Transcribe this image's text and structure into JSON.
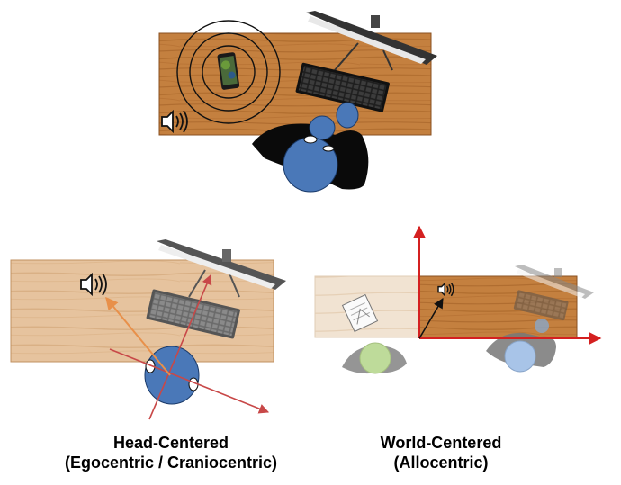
{
  "captions": {
    "head_centered": {
      "line1": "Head-Centered",
      "line2": "(Egocentric / Craniocentric)"
    },
    "world_centered": {
      "line1": "World-Centered",
      "line2": "(Allocentric)"
    }
  },
  "colors": {
    "desk_wood": "#c27a3a",
    "desk_grain": "#a45f27",
    "head_blue": "#4a78b8",
    "body_black": "#0a0a0a",
    "axis_red": "#d42020",
    "ego_axis_red": "#c84040",
    "sound_arrow_orange": "#e8904a",
    "monitor_gray": "#555555",
    "keyboard_dark": "#2a2a2a",
    "world_head_green": "#b8d890",
    "world_head_lightblue": "#a8c4e8"
  },
  "icons": [
    "speaker-icon",
    "phone-icon",
    "monitor-icon",
    "keyboard-icon",
    "head-icon",
    "notebook-icon",
    "sound-waves-icon"
  ]
}
